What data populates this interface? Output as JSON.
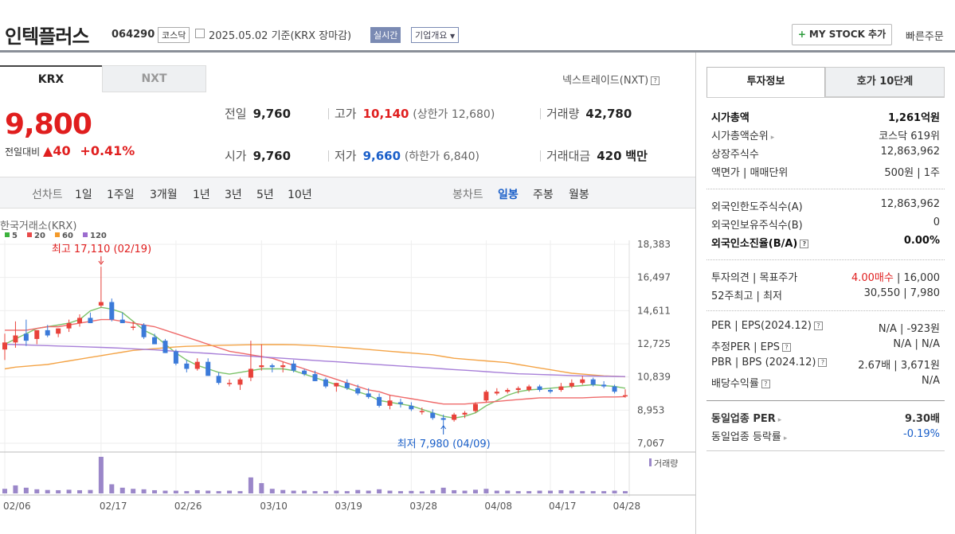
{
  "header": {
    "company": "인텍플러스",
    "code": "064290",
    "market": "코스닥",
    "date_text": "2025.05.02  기준(KRX 장마감)",
    "realtime": "실시간",
    "company_info": "기업개요",
    "mystock_button": "MY STOCK 추가",
    "quick_order": "빠른주문"
  },
  "exchange_tabs": {
    "krx": "KRX",
    "nxt": "NXT"
  },
  "nxt_link": "넥스트레이드(NXT)",
  "quote": {
    "price": "9,800",
    "change_label": "전일대비",
    "change_value": "40",
    "change_pct": "+0.41%",
    "prev_label": "전일",
    "prev_value": "9,760",
    "high_label": "고가",
    "high_value": "10,140",
    "upper_limit": "(상한가 12,680)",
    "volume_label": "거래량",
    "volume_value": "42,780",
    "open_label": "시가",
    "open_value": "9,760",
    "low_label": "저가",
    "low_value": "9,660",
    "lower_limit": "(하한가 6,840)",
    "amount_label": "거래대금",
    "amount_value": "420",
    "amount_unit": "백만"
  },
  "period_bar": {
    "line_label": "선차트",
    "line_periods": [
      "1일",
      "1주일",
      "3개월",
      "1년",
      "3년",
      "5년",
      "10년"
    ],
    "candle_label": "봉차트",
    "candle_periods": [
      "일봉",
      "주봉",
      "월봉"
    ],
    "candle_active": "일봉"
  },
  "chart_labels": {
    "exchange": "한국거래소(KRX)",
    "ma_legend": [
      {
        "label": "5",
        "color": "#3cb23c"
      },
      {
        "label": "20",
        "color": "#e84a4a"
      },
      {
        "label": "60",
        "color": "#f39a2a"
      },
      {
        "label": "120",
        "color": "#9c6ccf"
      }
    ],
    "high_annotation": "최고 17,110 (02/19)",
    "low_annotation": "최저 7,980 (04/09)",
    "volume_legend": "거래량"
  },
  "chart_data": {
    "type": "candlestick",
    "yticks": [
      18383,
      16497,
      14611,
      12725,
      10839,
      8953,
      7067
    ],
    "ylim": [
      7067,
      18383
    ],
    "xticks": [
      "02/06",
      "02/17",
      "02/26",
      "03/10",
      "03/19",
      "03/28",
      "04/08",
      "04/17",
      "04/28"
    ],
    "candles": [
      [
        12400,
        13300,
        11800,
        12800
      ],
      [
        12800,
        14000,
        12500,
        13200
      ],
      [
        13300,
        14100,
        12600,
        12900
      ],
      [
        13000,
        13500,
        12700,
        13500
      ],
      [
        13500,
        13800,
        13100,
        13200
      ],
      [
        13300,
        13600,
        13100,
        13600
      ],
      [
        13600,
        14100,
        13400,
        13900
      ],
      [
        13900,
        14400,
        13700,
        14200
      ],
      [
        14200,
        14500,
        13900,
        13900
      ],
      [
        14900,
        17110,
        14800,
        15100
      ],
      [
        15100,
        15300,
        14000,
        14100
      ],
      [
        14100,
        14500,
        13900,
        13900
      ],
      [
        13700,
        14000,
        13500,
        13700
      ],
      [
        13800,
        13900,
        13000,
        13100
      ],
      [
        13100,
        13300,
        12700,
        12700
      ],
      [
        12900,
        13000,
        12200,
        12200
      ],
      [
        12300,
        12400,
        11500,
        11600
      ],
      [
        11600,
        11800,
        11100,
        11300
      ],
      [
        11300,
        11900,
        11200,
        11700
      ],
      [
        11700,
        11900,
        10900,
        10900
      ],
      [
        10900,
        11100,
        10400,
        10500
      ],
      [
        10500,
        10700,
        10300,
        10500
      ],
      [
        10400,
        10800,
        10100,
        10700
      ],
      [
        10800,
        12900,
        10600,
        11300
      ],
      [
        11400,
        12700,
        11200,
        11500
      ],
      [
        11500,
        11600,
        11100,
        11400
      ],
      [
        11400,
        11700,
        11100,
        11500
      ],
      [
        11600,
        11800,
        11100,
        11200
      ],
      [
        11200,
        11300,
        10900,
        11000
      ],
      [
        11000,
        11200,
        10600,
        10600
      ],
      [
        10700,
        10800,
        10200,
        10300
      ],
      [
        10300,
        10500,
        10000,
        10500
      ],
      [
        10500,
        10700,
        10100,
        10200
      ],
      [
        10200,
        10400,
        9800,
        9900
      ],
      [
        9900,
        10200,
        9600,
        9700
      ],
      [
        9700,
        9900,
        9100,
        9200
      ],
      [
        9200,
        9800,
        9000,
        9500
      ],
      [
        9400,
        9600,
        9100,
        9300
      ],
      [
        9200,
        9400,
        8900,
        9000
      ],
      [
        8900,
        9100,
        8700,
        8900
      ],
      [
        8800,
        9000,
        8400,
        8500
      ],
      [
        8500,
        8700,
        7980,
        8400
      ],
      [
        8400,
        8800,
        8300,
        8700
      ],
      [
        8700,
        8900,
        8500,
        8800
      ],
      [
        8900,
        9400,
        8800,
        9300
      ],
      [
        9500,
        10100,
        9400,
        10000
      ],
      [
        9900,
        10200,
        9800,
        10000
      ],
      [
        10000,
        10200,
        9900,
        10100
      ],
      [
        10100,
        10300,
        9900,
        10200
      ],
      [
        10100,
        10400,
        10000,
        10300
      ],
      [
        10300,
        10400,
        10000,
        10100
      ],
      [
        10100,
        10200,
        9900,
        10000
      ],
      [
        10100,
        10500,
        10000,
        10300
      ],
      [
        10300,
        10700,
        10200,
        10500
      ],
      [
        10500,
        10900,
        10400,
        10700
      ],
      [
        10700,
        10800,
        10300,
        10400
      ],
      [
        10400,
        10600,
        10200,
        10300
      ],
      [
        10300,
        10400,
        9900,
        10000
      ],
      [
        9760,
        10140,
        9660,
        9800
      ]
    ],
    "ma": {
      "5": [
        12700,
        13000,
        13300,
        13600,
        13700,
        13800,
        13900,
        14100,
        14600,
        14800,
        14700,
        14500,
        14000,
        13500,
        13200,
        12700,
        12200,
        11800,
        11500,
        11300,
        11100,
        11000,
        11100,
        11200,
        11300,
        11300,
        11300,
        11200,
        11000,
        10800,
        10600,
        10400,
        10200,
        10000,
        9800,
        9500,
        9400,
        9300,
        9200,
        9000,
        8800,
        8600,
        8500,
        8600,
        8800,
        9200,
        9500,
        9800,
        10000,
        10100,
        10150,
        10200,
        10250,
        10300,
        10350,
        10400,
        10350,
        10300,
        10200
      ],
      "20": [
        13500,
        13500,
        13500,
        13600,
        13700,
        13700,
        13800,
        13900,
        14000,
        14100,
        14100,
        14000,
        13900,
        13800,
        13700,
        13500,
        13300,
        13100,
        12900,
        12700,
        12500,
        12300,
        12200,
        12100,
        12000,
        11900,
        11700,
        11500,
        11300,
        11100,
        10900,
        10700,
        10500,
        10300,
        10100,
        10000,
        9800,
        9700,
        9600,
        9500,
        9400,
        9300,
        9300,
        9300,
        9350,
        9400,
        9450,
        9500,
        9550,
        9600,
        9650,
        9650,
        9650,
        9650,
        9650,
        9680,
        9700,
        9700,
        9720
      ],
      "60": [
        11300,
        11400,
        11450,
        11500,
        11550,
        11650,
        11750,
        11850,
        11950,
        12050,
        12150,
        12250,
        12350,
        12400,
        12450,
        12500,
        12550,
        12580,
        12600,
        12620,
        12640,
        12650,
        12660,
        12670,
        12680,
        12680,
        12680,
        12670,
        12650,
        12620,
        12580,
        12540,
        12500,
        12450,
        12400,
        12350,
        12300,
        12250,
        12200,
        12150,
        12100,
        12000,
        11900,
        11850,
        11800,
        11750,
        11700,
        11650,
        11550,
        11450,
        11350,
        11250,
        11150,
        11050,
        11000,
        10950,
        10900,
        10880,
        10850
      ],
      "120": [
        12700,
        12680,
        12660,
        12640,
        12620,
        12600,
        12580,
        12560,
        12540,
        12520,
        12500,
        12470,
        12440,
        12410,
        12380,
        12340,
        12300,
        12260,
        12220,
        12180,
        12140,
        12100,
        12060,
        12020,
        11980,
        11940,
        11900,
        11860,
        11820,
        11780,
        11740,
        11700,
        11660,
        11620,
        11580,
        11540,
        11500,
        11460,
        11420,
        11380,
        11340,
        11300,
        11260,
        11220,
        11180,
        11140,
        11100,
        11060,
        11020,
        11000,
        10980,
        10960,
        10940,
        10920,
        10900,
        10890,
        10880,
        10870,
        10860
      ]
    },
    "volume": [
      20,
      35,
      25,
      18,
      15,
      14,
      16,
      14,
      15,
      160,
      40,
      25,
      20,
      18,
      14,
      12,
      12,
      10,
      14,
      12,
      10,
      12,
      10,
      70,
      45,
      20,
      15,
      12,
      12,
      10,
      10,
      12,
      10,
      15,
      12,
      18,
      12,
      10,
      11,
      9,
      14,
      25,
      14,
      12,
      16,
      20,
      12,
      12,
      10,
      10,
      12,
      12,
      14,
      12,
      10,
      10,
      10,
      12,
      10
    ]
  },
  "invest_info": {
    "tab_info": "투자정보",
    "tab_hoga": "호가 10단계",
    "rows1": [
      {
        "k": "시가총액",
        "v": "1,261억원",
        "bold": true
      },
      {
        "k": "시가총액순위",
        "v": "코스닥 619위"
      },
      {
        "k": "상장주식수",
        "v": "12,863,962"
      },
      {
        "k": "액면가 | 매매단위",
        "v": "500원 | 1주"
      }
    ],
    "rows2": [
      {
        "k": "외국인한도주식수(A)",
        "v": "12,863,962"
      },
      {
        "k": "외국인보유주식수(B)",
        "v": "0"
      },
      {
        "k": "외국인소진율(B/A)",
        "v": "0.00%",
        "bold": true
      }
    ],
    "rows3": [
      {
        "k": "투자의견 | 목표주가",
        "v_red": "4.00매수",
        "v": "16,000"
      },
      {
        "k": "52주최고 | 최저",
        "v": "30,550 | 7,980"
      }
    ],
    "rows4": [
      {
        "k": "PER | EPS(2024.12)",
        "v": "N/A | -923원"
      },
      {
        "k": "추정PER | EPS",
        "v": "N/A | N/A"
      },
      {
        "k": "PBR | BPS (2024.12)",
        "v": "2.67배 | 3,671원"
      },
      {
        "k": "배당수익률",
        "v": "N/A"
      }
    ],
    "rows5": [
      {
        "k": "동일업종 PER",
        "v": "9.30배"
      },
      {
        "k": "동일업종 등락률",
        "v": "-0.19%"
      }
    ]
  }
}
